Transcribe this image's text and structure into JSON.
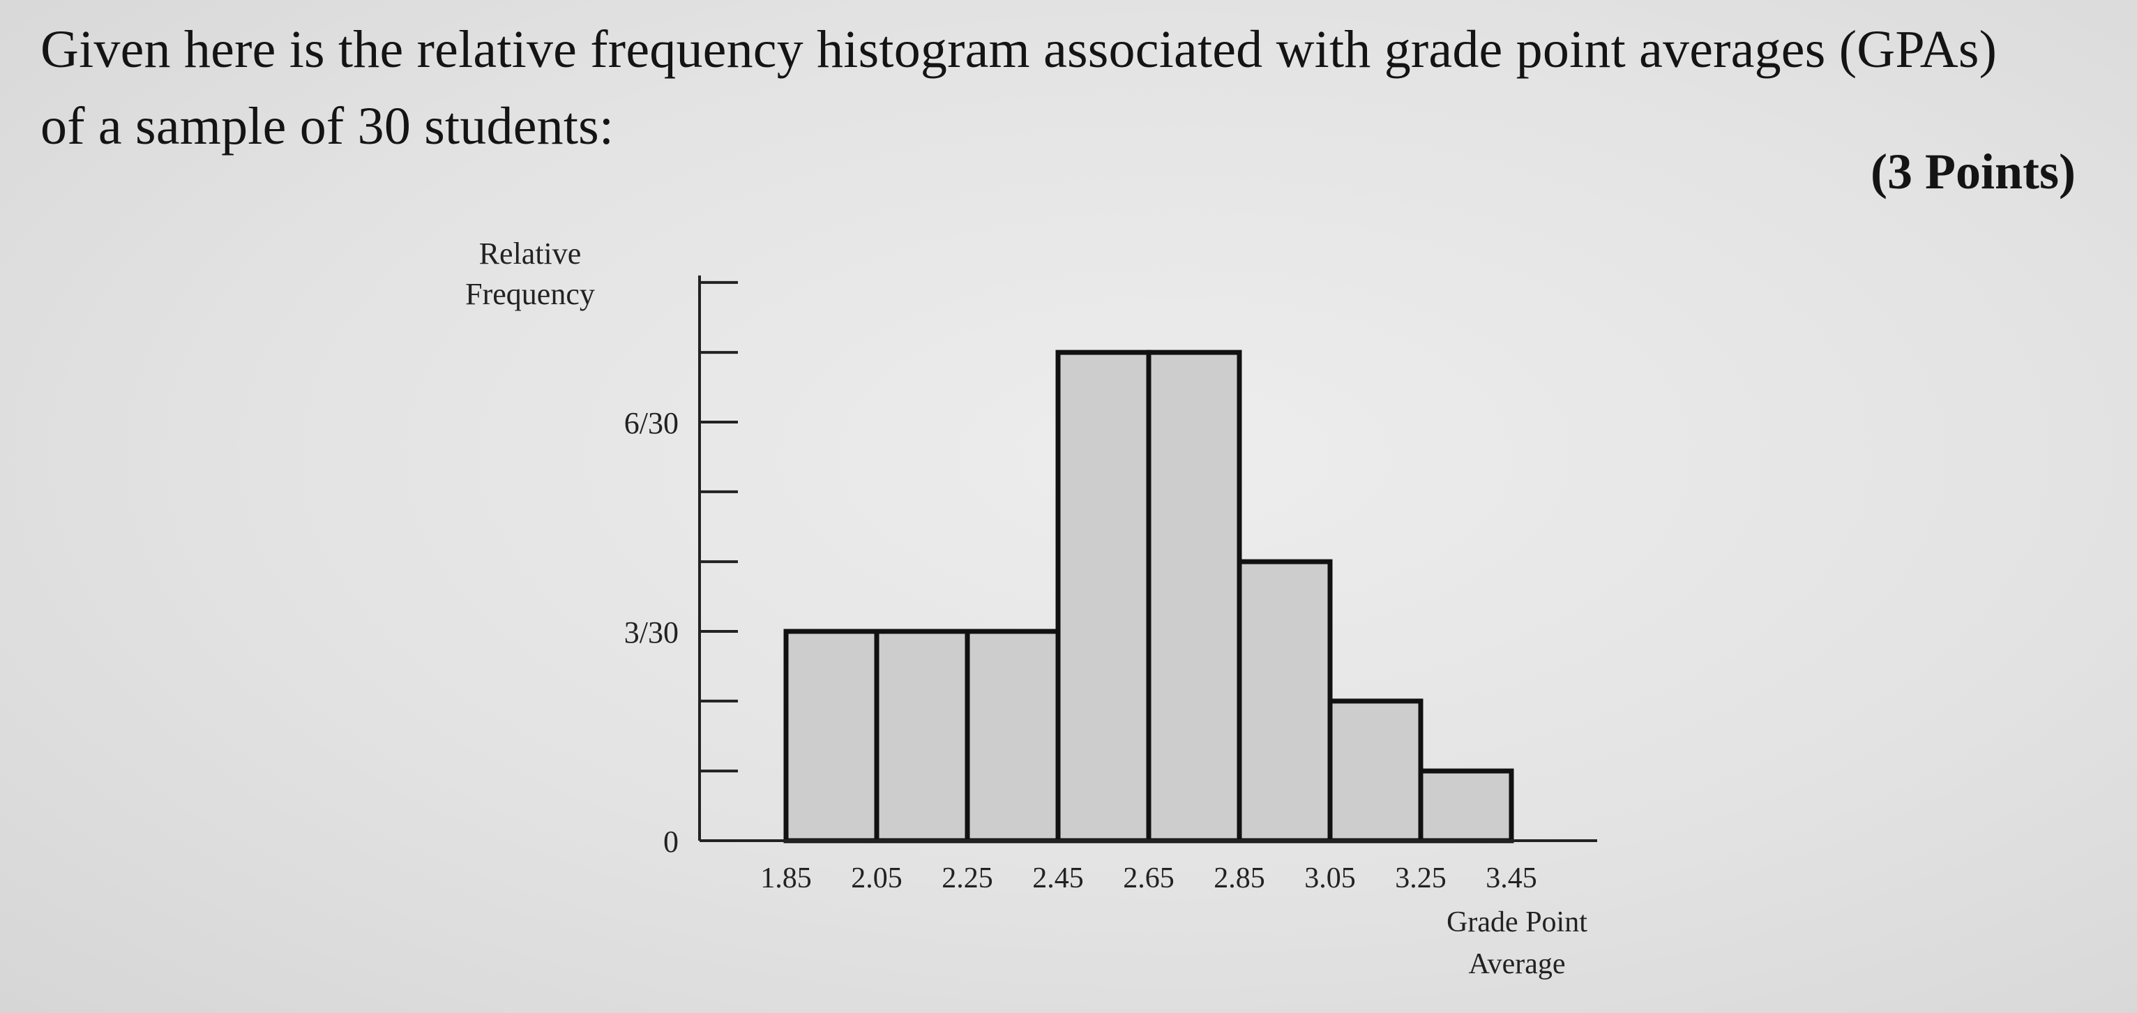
{
  "question": {
    "line1": "Given here is the relative frequency histogram associated with grade point averages (GPAs)",
    "line2": "of a sample of 30 students:",
    "points": "(3 Points)"
  },
  "chart_data": {
    "type": "bar",
    "histogram": true,
    "ylabel_lines": [
      "Relative",
      "Frequency"
    ],
    "xlabel_lines": [
      "Grade Point",
      "Average"
    ],
    "bin_edges": [
      "1.85",
      "2.05",
      "2.25",
      "2.45",
      "2.65",
      "2.85",
      "3.05",
      "3.25",
      "3.45"
    ],
    "values": [
      0.1,
      0.1,
      0.1,
      0.2333,
      0.2333,
      0.1333,
      0.0667,
      0.0333
    ],
    "y_tick_labels": [
      {
        "value": 0,
        "label": "0"
      },
      {
        "value": 0.1,
        "label": "3/30"
      },
      {
        "value": 0.2,
        "label": "6/30"
      }
    ],
    "y_minor_ticks": [
      0.0333,
      0.0667,
      0.1333,
      0.1667,
      0.2333,
      0.2667
    ],
    "ylim": [
      0,
      0.2667
    ],
    "colors": {
      "bar_fill": "#cdcdcd",
      "bar_stroke": "#111111"
    }
  }
}
